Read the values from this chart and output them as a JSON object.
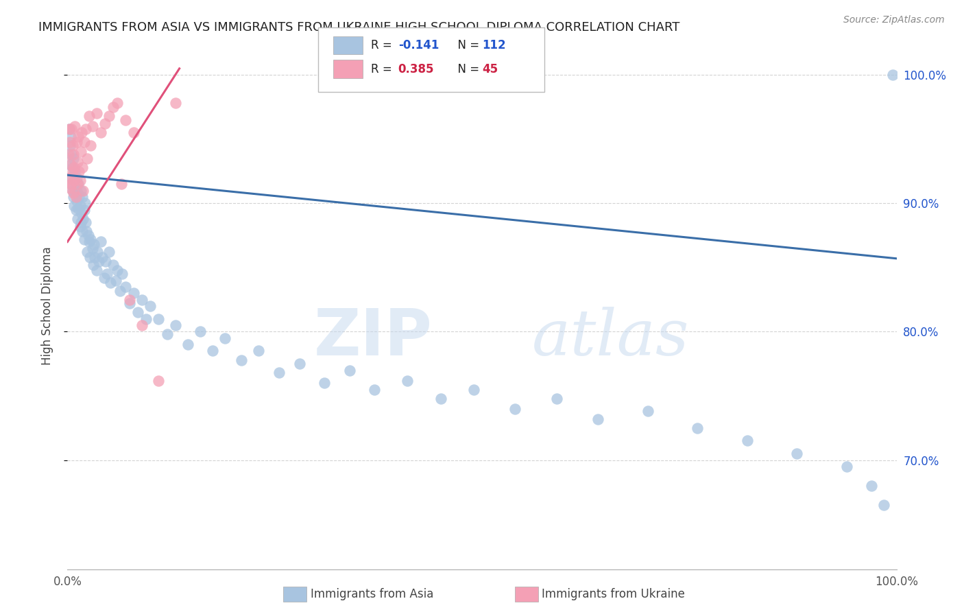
{
  "title": "IMMIGRANTS FROM ASIA VS IMMIGRANTS FROM UKRAINE HIGH SCHOOL DIPLOMA CORRELATION CHART",
  "source": "Source: ZipAtlas.com",
  "ylabel": "High School Diploma",
  "x_label_bottom_left": "0.0%",
  "x_label_bottom_right": "100.0%",
  "y_right_labels": [
    "100.0%",
    "90.0%",
    "80.0%",
    "70.0%"
  ],
  "legend_asia_label": "Immigrants from Asia",
  "legend_ukraine_label": "Immigrants from Ukraine",
  "asia_color": "#a8c4e0",
  "ukraine_color": "#f4a0b5",
  "asia_line_color": "#3a6ea8",
  "ukraine_line_color": "#e0507a",
  "r_color_asia": "#2255cc",
  "r_color_ukraine": "#cc2244",
  "watermark_zip": "ZIP",
  "watermark_atlas": "atlas",
  "xlim": [
    0.0,
    1.0
  ],
  "ylim": [
    0.615,
    1.025
  ],
  "asia_trend_x": [
    0.0,
    1.0
  ],
  "asia_trend_y": [
    0.922,
    0.857
  ],
  "ukraine_trend_x": [
    0.0,
    0.135
  ],
  "ukraine_trend_y": [
    0.87,
    1.005
  ],
  "asia_scatter_x": [
    0.002,
    0.003,
    0.003,
    0.004,
    0.004,
    0.005,
    0.005,
    0.006,
    0.006,
    0.007,
    0.007,
    0.008,
    0.008,
    0.009,
    0.009,
    0.01,
    0.01,
    0.011,
    0.011,
    0.012,
    0.012,
    0.013,
    0.013,
    0.014,
    0.015,
    0.015,
    0.016,
    0.016,
    0.017,
    0.018,
    0.018,
    0.019,
    0.02,
    0.02,
    0.021,
    0.022,
    0.023,
    0.024,
    0.025,
    0.026,
    0.027,
    0.028,
    0.03,
    0.031,
    0.032,
    0.033,
    0.035,
    0.036,
    0.038,
    0.04,
    0.042,
    0.044,
    0.046,
    0.048,
    0.05,
    0.052,
    0.055,
    0.058,
    0.06,
    0.063,
    0.066,
    0.07,
    0.075,
    0.08,
    0.085,
    0.09,
    0.095,
    0.1,
    0.11,
    0.12,
    0.13,
    0.145,
    0.16,
    0.175,
    0.19,
    0.21,
    0.23,
    0.255,
    0.28,
    0.31,
    0.34,
    0.37,
    0.41,
    0.45,
    0.49,
    0.54,
    0.59,
    0.64,
    0.7,
    0.76,
    0.82,
    0.88,
    0.94,
    0.97,
    0.985,
    0.995
  ],
  "asia_scatter_y": [
    0.958,
    0.945,
    0.93,
    0.952,
    0.915,
    0.938,
    0.92,
    0.928,
    0.91,
    0.935,
    0.905,
    0.918,
    0.898,
    0.925,
    0.908,
    0.912,
    0.895,
    0.92,
    0.902,
    0.908,
    0.888,
    0.915,
    0.896,
    0.905,
    0.882,
    0.898,
    0.91,
    0.885,
    0.892,
    0.878,
    0.905,
    0.888,
    0.895,
    0.872,
    0.9,
    0.885,
    0.878,
    0.862,
    0.875,
    0.87,
    0.858,
    0.872,
    0.865,
    0.852,
    0.868,
    0.858,
    0.848,
    0.862,
    0.855,
    0.87,
    0.858,
    0.842,
    0.855,
    0.845,
    0.862,
    0.838,
    0.852,
    0.84,
    0.848,
    0.832,
    0.845,
    0.835,
    0.822,
    0.83,
    0.815,
    0.825,
    0.81,
    0.82,
    0.81,
    0.798,
    0.805,
    0.79,
    0.8,
    0.785,
    0.795,
    0.778,
    0.785,
    0.768,
    0.775,
    0.76,
    0.77,
    0.755,
    0.762,
    0.748,
    0.755,
    0.74,
    0.748,
    0.732,
    0.738,
    0.725,
    0.715,
    0.705,
    0.695,
    0.68,
    0.665,
    1.0
  ],
  "ukraine_scatter_x": [
    0.001,
    0.002,
    0.002,
    0.003,
    0.003,
    0.004,
    0.005,
    0.005,
    0.006,
    0.006,
    0.007,
    0.007,
    0.008,
    0.008,
    0.009,
    0.01,
    0.011,
    0.012,
    0.012,
    0.013,
    0.014,
    0.015,
    0.016,
    0.017,
    0.018,
    0.019,
    0.02,
    0.022,
    0.024,
    0.026,
    0.028,
    0.03,
    0.035,
    0.04,
    0.045,
    0.05,
    0.055,
    0.06,
    0.065,
    0.07,
    0.075,
    0.08,
    0.09,
    0.11,
    0.13
  ],
  "ukraine_scatter_y": [
    0.938,
    0.958,
    0.92,
    0.948,
    0.912,
    0.93,
    0.958,
    0.915,
    0.945,
    0.925,
    0.938,
    0.908,
    0.918,
    0.928,
    0.96,
    0.905,
    0.948,
    0.932,
    0.915,
    0.952,
    0.925,
    0.918,
    0.94,
    0.955,
    0.928,
    0.91,
    0.948,
    0.958,
    0.935,
    0.968,
    0.945,
    0.96,
    0.97,
    0.955,
    0.962,
    0.968,
    0.975,
    0.978,
    0.915,
    0.965,
    0.825,
    0.955,
    0.805,
    0.762,
    0.978
  ]
}
